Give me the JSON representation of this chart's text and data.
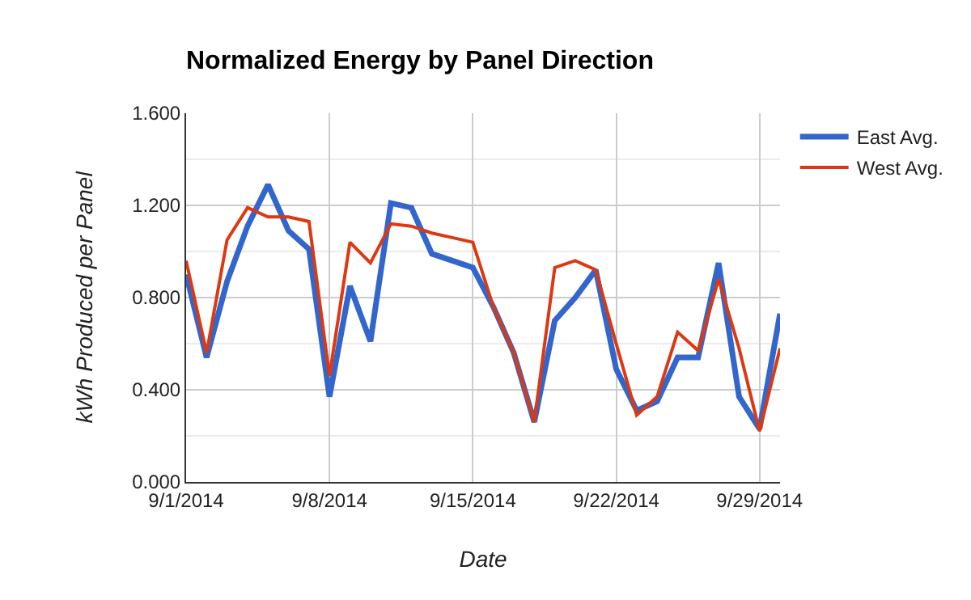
{
  "chart_data": {
    "type": "line",
    "title": "Normalized Energy by Panel Direction",
    "xlabel": "Date",
    "ylabel": "kWh Produced per Panel",
    "x": [
      "2014-09-01",
      "2014-09-02",
      "2014-09-03",
      "2014-09-04",
      "2014-09-05",
      "2014-09-06",
      "2014-09-07",
      "2014-09-08",
      "2014-09-09",
      "2014-09-10",
      "2014-09-11",
      "2014-09-12",
      "2014-09-13",
      "2014-09-14",
      "2014-09-15",
      "2014-09-16",
      "2014-09-17",
      "2014-09-18",
      "2014-09-19",
      "2014-09-20",
      "2014-09-21",
      "2014-09-22",
      "2014-09-23",
      "2014-09-24",
      "2014-09-25",
      "2014-09-26",
      "2014-09-27",
      "2014-09-28",
      "2014-09-29",
      "2014-09-30"
    ],
    "series": [
      {
        "name": "East Avg.",
        "color": "#3366cc",
        "values": [
          0.9,
          0.54,
          0.87,
          1.11,
          1.29,
          1.09,
          1.01,
          0.37,
          0.85,
          0.61,
          1.21,
          1.19,
          0.99,
          0.96,
          0.93,
          0.76,
          0.56,
          0.26,
          0.7,
          0.8,
          0.92,
          0.49,
          0.31,
          0.35,
          0.54,
          0.54,
          0.95,
          0.37,
          0.23,
          0.73
        ]
      },
      {
        "name": "West Avg.",
        "color": "#dc3912",
        "values": [
          0.96,
          0.56,
          1.05,
          1.19,
          1.15,
          1.15,
          1.13,
          0.46,
          1.04,
          0.95,
          1.12,
          1.11,
          1.08,
          1.06,
          1.04,
          0.76,
          0.56,
          0.26,
          0.93,
          0.96,
          0.92,
          0.6,
          0.29,
          0.37,
          0.65,
          0.57,
          0.88,
          0.58,
          0.22,
          0.58
        ]
      }
    ],
    "xlim": [
      "2014-09-01",
      "2014-09-30"
    ],
    "xticks": [
      {
        "value": "2014-09-01",
        "label": "9/1/2014"
      },
      {
        "value": "2014-09-08",
        "label": "9/8/2014"
      },
      {
        "value": "2014-09-15",
        "label": "9/15/2014"
      },
      {
        "value": "2014-09-22",
        "label": "9/22/2014"
      },
      {
        "value": "2014-09-29",
        "label": "9/29/2014"
      }
    ],
    "ylim": [
      0,
      1.6
    ],
    "yticks": [
      {
        "value": 0,
        "label": "0.000"
      },
      {
        "value": 0.4,
        "label": "0.400"
      },
      {
        "value": 0.8,
        "label": "0.800"
      },
      {
        "value": 1.2,
        "label": "1.200"
      },
      {
        "value": 1.6,
        "label": "1.600"
      }
    ],
    "grid": true,
    "legend": "top right",
    "marker": "none",
    "line_style": "solid"
  }
}
